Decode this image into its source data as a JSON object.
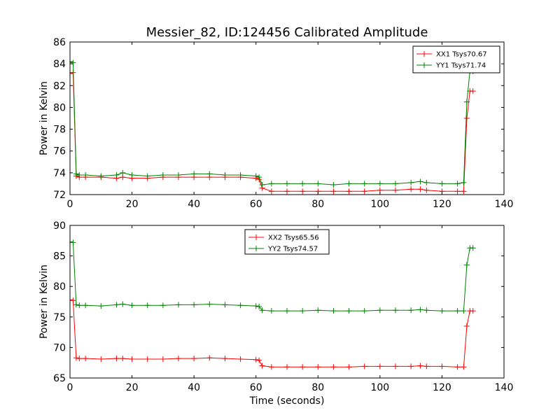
{
  "title": "Messier_82, ID:124456 Calibrated Amplitude",
  "colors": {
    "red": "#ff0000",
    "green": "#008000"
  },
  "chart_data": [
    {
      "type": "line",
      "xlabel": "",
      "ylabel": "Power in Kelvin",
      "xlim": [
        0,
        140
      ],
      "ylim": [
        72,
        86
      ],
      "xticks": [
        "0",
        "20",
        "40",
        "60",
        "80",
        "100",
        "120",
        "140"
      ],
      "yticks": [
        "72",
        "74",
        "76",
        "78",
        "80",
        "82",
        "84",
        "86"
      ],
      "grid": false,
      "legend_position": "top-right",
      "series": [
        {
          "name": "XX1 Tsys70.67",
          "color": "#ff0000",
          "x": [
            0,
            1,
            2,
            3,
            5,
            10,
            15,
            17,
            20,
            25,
            30,
            35,
            40,
            45,
            50,
            55,
            60,
            61,
            62,
            65,
            70,
            75,
            80,
            85,
            90,
            95,
            100,
            105,
            110,
            113,
            115,
            120,
            125,
            127,
            128,
            129,
            130
          ],
          "y": [
            83.1,
            83.2,
            73.7,
            73.6,
            73.6,
            73.6,
            73.5,
            73.6,
            73.5,
            73.5,
            73.6,
            73.6,
            73.6,
            73.6,
            73.6,
            73.6,
            73.5,
            73.4,
            72.6,
            72.3,
            72.3,
            72.3,
            72.3,
            72.3,
            72.3,
            72.3,
            72.4,
            72.4,
            72.5,
            72.5,
            72.4,
            72.3,
            72.3,
            72.3,
            79.0,
            81.5,
            81.5
          ]
        },
        {
          "name": "YY1 Tsys71.74",
          "color": "#008000",
          "x": [
            0,
            1,
            2,
            3,
            5,
            10,
            15,
            17,
            20,
            25,
            30,
            35,
            40,
            45,
            50,
            55,
            60,
            61,
            62,
            65,
            70,
            75,
            80,
            85,
            90,
            95,
            100,
            105,
            110,
            113,
            115,
            120,
            125,
            127,
            128,
            129,
            130
          ],
          "y": [
            84.2,
            84.1,
            73.9,
            73.8,
            73.8,
            73.7,
            73.8,
            74.0,
            73.8,
            73.7,
            73.8,
            73.8,
            73.9,
            73.9,
            73.8,
            73.8,
            73.7,
            73.6,
            72.9,
            73.0,
            73.0,
            73.0,
            73.0,
            72.9,
            73.0,
            73.0,
            73.0,
            73.0,
            73.1,
            73.2,
            73.1,
            73.0,
            73.0,
            73.1,
            80.5,
            83.3,
            83.3
          ]
        }
      ]
    },
    {
      "type": "line",
      "xlabel": "Time (seconds)",
      "ylabel": "Power in Kelvin",
      "xlim": [
        0,
        140
      ],
      "ylim": [
        65,
        90
      ],
      "xticks": [
        "0",
        "20",
        "40",
        "60",
        "80",
        "100",
        "120",
        "140"
      ],
      "yticks": [
        "65",
        "70",
        "75",
        "80",
        "85",
        "90"
      ],
      "grid": false,
      "legend_position": "top-center",
      "series": [
        {
          "name": "XX2 Tsys65.56",
          "color": "#ff0000",
          "x": [
            0,
            1,
            2,
            3,
            5,
            10,
            15,
            17,
            20,
            25,
            30,
            35,
            40,
            45,
            50,
            55,
            60,
            61,
            62,
            65,
            70,
            75,
            80,
            85,
            90,
            95,
            100,
            105,
            110,
            113,
            115,
            120,
            125,
            127,
            128,
            129,
            130
          ],
          "y": [
            77.8,
            77.7,
            68.3,
            68.2,
            68.2,
            68.1,
            68.2,
            68.2,
            68.1,
            68.1,
            68.1,
            68.2,
            68.2,
            68.3,
            68.2,
            68.1,
            68.0,
            67.9,
            67.0,
            66.8,
            66.8,
            66.8,
            66.8,
            66.8,
            66.8,
            66.9,
            66.9,
            66.9,
            66.9,
            67.0,
            66.9,
            66.9,
            66.8,
            66.8,
            73.5,
            76.0,
            76.0
          ]
        },
        {
          "name": "YY2 Tsys74.57",
          "color": "#008000",
          "x": [
            0,
            1,
            2,
            3,
            5,
            10,
            15,
            17,
            20,
            25,
            30,
            35,
            40,
            45,
            50,
            55,
            60,
            61,
            62,
            65,
            70,
            75,
            80,
            85,
            90,
            95,
            100,
            105,
            110,
            113,
            115,
            120,
            125,
            127,
            128,
            129,
            130
          ],
          "y": [
            87.3,
            87.2,
            77.0,
            76.9,
            76.9,
            76.8,
            77.0,
            77.1,
            76.9,
            76.9,
            76.9,
            77.0,
            77.0,
            77.1,
            77.0,
            76.9,
            76.8,
            76.7,
            76.1,
            76.0,
            76.0,
            76.0,
            76.1,
            76.0,
            76.0,
            76.0,
            76.1,
            76.1,
            76.1,
            76.2,
            76.1,
            76.0,
            76.0,
            76.0,
            83.5,
            86.3,
            86.3
          ]
        }
      ]
    }
  ]
}
